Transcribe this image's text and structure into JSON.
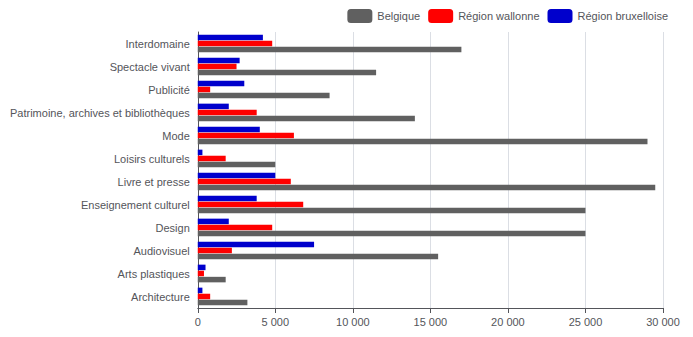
{
  "chart_data": {
    "type": "bar",
    "orientation": "horizontal",
    "categories": [
      "Architecture",
      "Arts plastiques",
      "Audiovisuel",
      "Design",
      "Enseignement culturel",
      "Livre et presse",
      "Loisirs culturels",
      "Mode",
      "Patrimoine, archives et bibliothèques",
      "Publicité",
      "Spectacle vivant",
      "Interdomaine"
    ],
    "series": [
      {
        "name": "Belgique",
        "color": "#606060",
        "values": [
          3200,
          1800,
          15500,
          25000,
          25000,
          29500,
          5000,
          29000,
          14000,
          8500,
          11500,
          17000
        ]
      },
      {
        "name": "Région wallonne",
        "color": "#ff0000",
        "values": [
          800,
          400,
          2200,
          4800,
          6800,
          6000,
          1800,
          6200,
          3800,
          800,
          2500,
          4800
        ]
      },
      {
        "name": "Région bruxelloise",
        "color": "#0000cc",
        "values": [
          300,
          500,
          7500,
          2000,
          3800,
          5000,
          300,
          4000,
          2000,
          3000,
          2700,
          4200
        ]
      }
    ],
    "xlim": [
      0,
      30000
    ],
    "xticks": [
      0,
      {
        "value": 5000,
        "label": "5 000"
      },
      {
        "value": 10000,
        "label": "10 000"
      },
      {
        "value": 15000,
        "label": "15 000"
      },
      {
        "value": 20000,
        "label": "20 000"
      },
      {
        "value": 25000,
        "label": "25 000"
      },
      {
        "value": 30000,
        "label": "30 000"
      }
    ],
    "grid": true,
    "legend": "upper right"
  }
}
